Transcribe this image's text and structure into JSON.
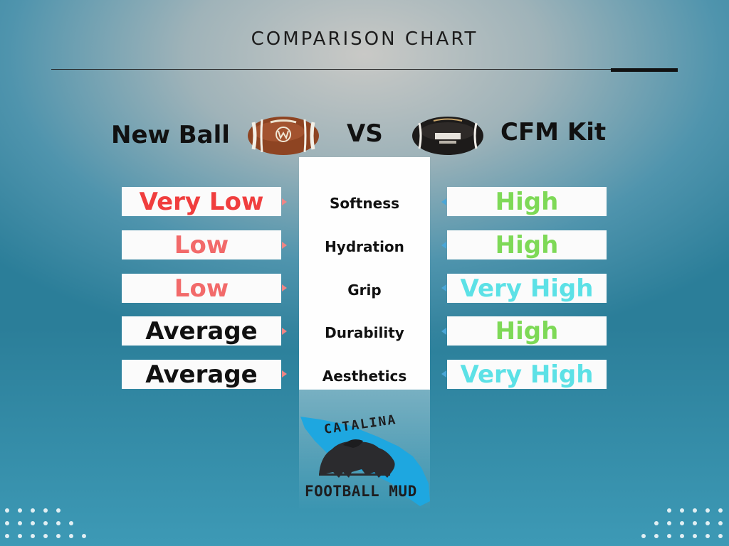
{
  "title": "COMPARISON CHART",
  "headers": {
    "left": "New Ball",
    "vs": "VS",
    "right": "CFM Kit"
  },
  "rows": [
    {
      "criterion": "Softness",
      "left": "Very Low",
      "right": "High"
    },
    {
      "criterion": "Hydration",
      "left": "Low",
      "right": "High"
    },
    {
      "criterion": "Grip",
      "left": "Low",
      "right": "Very High"
    },
    {
      "criterion": "Durability",
      "left": "Average",
      "right": "High"
    },
    {
      "criterion": "Aesthetics",
      "left": "Average",
      "right": "Very High"
    }
  ],
  "logo": {
    "top_text": "CATALINA",
    "bottom_text": "FOOTBALL MUD"
  },
  "icons": {
    "left_ball": "football-brown-icon",
    "right_ball": "football-black-icon"
  },
  "colors": {
    "very_low": "#f03e3e",
    "low": "#f26a6a",
    "average": "#111111",
    "high": "#7ed957",
    "very_high": "#5ce1e6"
  }
}
